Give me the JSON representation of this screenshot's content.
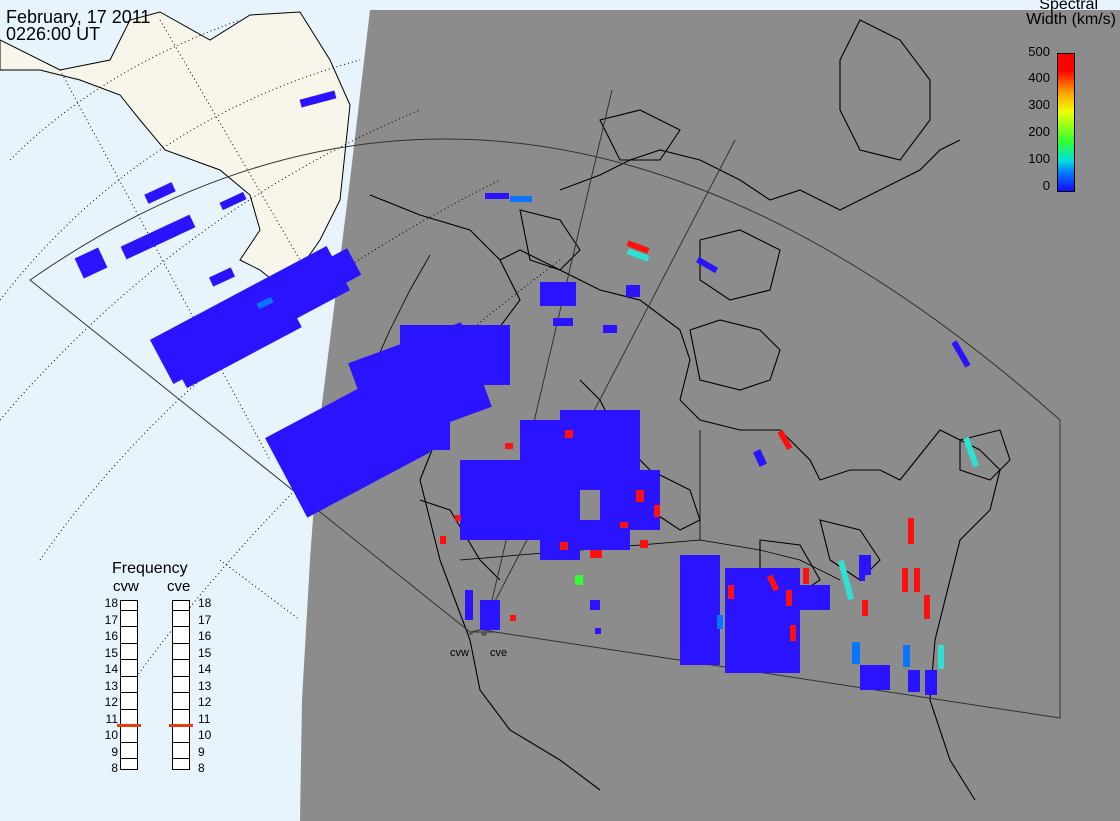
{
  "header": {
    "date": "February, 17 2011",
    "time": "0226:00 UT"
  },
  "colorbar": {
    "title_line1": "Spectral",
    "title_line2": "Width (km/s)",
    "ticks": [
      "500",
      "400",
      "300",
      "200",
      "100",
      "0"
    ]
  },
  "frequency": {
    "title": "Frequency",
    "radars": [
      {
        "name": "cvw",
        "value_mhz": 10.8
      },
      {
        "name": "cve",
        "value_mhz": 10.8
      }
    ],
    "scale": [
      "18",
      "17",
      "16",
      "15",
      "14",
      "13",
      "12",
      "11",
      "10",
      "9",
      "8"
    ]
  },
  "sites": [
    "cvw",
    "cve"
  ],
  "colors": {
    "ocean": "#e8f4fb",
    "land_light": "#f8f6ea",
    "night_shade": "#8c8c8c",
    "scatter_low": "#2a14ff",
    "scatter_cyan": "#30e0d0",
    "scatter_red": "#ff1010",
    "scatter_green": "#30ff30",
    "frequency_marker": "#e04010"
  }
}
